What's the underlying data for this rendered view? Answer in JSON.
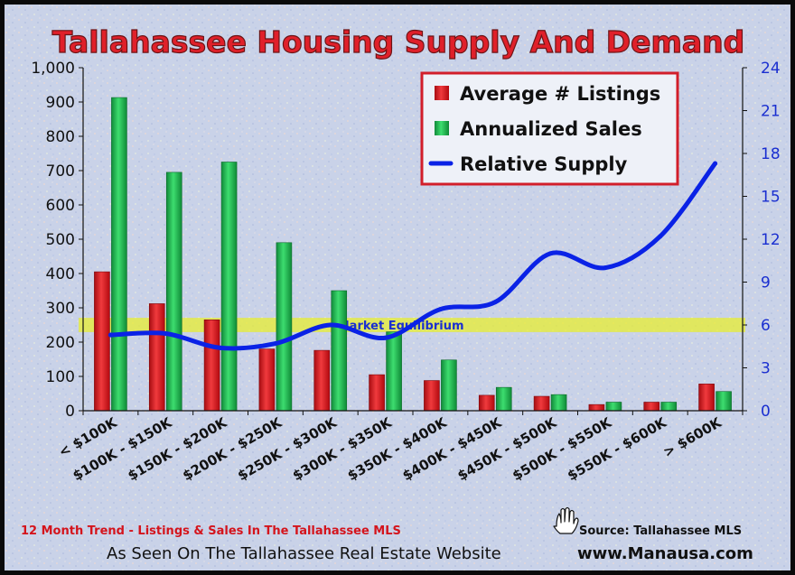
{
  "chart_data": {
    "type": "bar",
    "title": "Tallahassee Housing Supply And Demand",
    "categories": [
      "< $100K",
      "$100K - $150K",
      "$150K - $200K",
      "$200K - $250K",
      "$250K - $300K",
      "$300K - $350K",
      "$350K - $400K",
      "$400K - $450K",
      "$450K - $500K",
      "$500K - $550K",
      "$550K - $600K",
      "> $600K"
    ],
    "series": [
      {
        "name": "Average # Listings",
        "axis": "left",
        "type": "bar",
        "color": "#d8161b",
        "values": [
          405,
          312,
          265,
          180,
          176,
          105,
          88,
          45,
          42,
          18,
          25,
          78
        ]
      },
      {
        "name": "Annualized Sales",
        "axis": "left",
        "type": "bar",
        "color": "#1fb84f",
        "values": [
          913,
          695,
          725,
          490,
          350,
          230,
          148,
          68,
          47,
          25,
          25,
          56
        ]
      },
      {
        "name": "Relative Supply",
        "axis": "right",
        "type": "line",
        "color": "#0a22e6",
        "values": [
          5.3,
          5.4,
          4.4,
          4.7,
          6.0,
          5.1,
          7.1,
          7.6,
          11.0,
          10.0,
          12.2,
          17.3
        ]
      }
    ],
    "y_left": {
      "ylim": [
        0,
        1000
      ],
      "ticks": [
        "0",
        "100",
        "200",
        "300",
        "400",
        "500",
        "600",
        "700",
        "800",
        "900",
        "1,000"
      ]
    },
    "y_right": {
      "ylim": [
        0,
        24
      ],
      "ticks": [
        "0",
        "3",
        "6",
        "9",
        "12",
        "15",
        "18",
        "21",
        "24"
      ]
    },
    "equilibrium_band": {
      "label": "Market Equilibrium",
      "range": [
        5.5,
        6.5
      ]
    },
    "legend_placement": "top-right",
    "grid": false
  },
  "footer": {
    "trend_note": "12 Month Trend - Listings & Sales In The Tallahassee MLS",
    "source": "Source: Tallahassee MLS",
    "seen_on": "As Seen On The Tallahassee Real Estate Website",
    "website": "www.Manausa.com"
  },
  "colors": {
    "background": "#c9d2e8",
    "title_fill": "#e0202a",
    "right_axis": "#1a2fd0",
    "band": "#e9ee2a",
    "hand_icon": "hand-pointing-icon"
  }
}
